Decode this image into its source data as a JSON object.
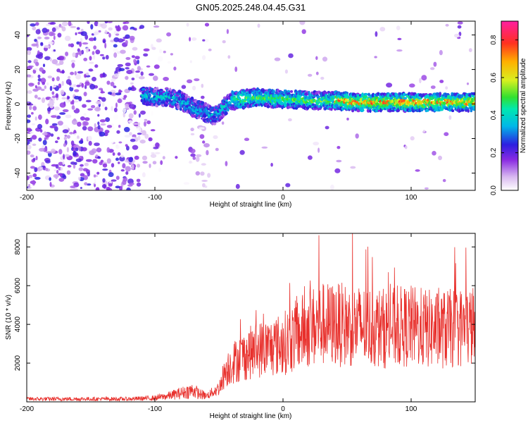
{
  "title": "GN05.2025.248.04.45.G31",
  "chart_data": [
    {
      "type": "heatmap",
      "xlabel": "Height of straight line (km)",
      "ylabel": "Frequency (Hz)",
      "xlim": [
        -200,
        150
      ],
      "ylim": [
        -50,
        48
      ],
      "xticks": [
        -200,
        -100,
        0,
        100
      ],
      "yticks": [
        -40,
        -20,
        0,
        20,
        40
      ],
      "colorbar": {
        "label": "Normalized spectral amplitude",
        "range": [
          0,
          0.9
        ],
        "ticks": [
          "0.0",
          "0.2",
          "0.4",
          "0.6",
          "0.8"
        ]
      },
      "ridge": {
        "x": [
          -110,
          -100,
          -90,
          -80,
          -70,
          -60,
          -55,
          -50,
          -45,
          -40,
          -30,
          -20,
          -10,
          0,
          20,
          40,
          60,
          80,
          100,
          120,
          150
        ],
        "frequency": [
          5,
          4,
          4,
          2,
          -2,
          -5,
          -7,
          -5,
          -1,
          2,
          3,
          4,
          3,
          3,
          2,
          2,
          1,
          1,
          1,
          1,
          1
        ]
      }
    },
    {
      "type": "line",
      "xlabel": "Height of straight line (km)",
      "ylabel": "SNR (10 * v/v)",
      "xlim": [
        -200,
        150
      ],
      "ylim": [
        0,
        8700
      ],
      "xticks": [
        -200,
        -100,
        0,
        100
      ],
      "yticks": [
        2000,
        4000,
        6000,
        8000
      ],
      "series": [
        {
          "name": "SNR",
          "color": "#e8302c",
          "envelope_x": [
            -200,
            -120,
            -100,
            -90,
            -80,
            -70,
            -65,
            -60,
            -50,
            -45,
            -40,
            -30,
            -20,
            -10,
            0,
            10,
            20,
            30,
            40,
            60,
            80,
            100,
            120,
            150
          ],
          "envelope_mean": [
            150,
            150,
            200,
            300,
            450,
            600,
            400,
            300,
            700,
            1600,
            2000,
            2400,
            2700,
            2800,
            3000,
            3400,
            3800,
            4000,
            4000,
            3900,
            3800,
            3900,
            3700,
            3900
          ],
          "peak_x": 28,
          "peak_value": 8600
        }
      ]
    }
  ]
}
